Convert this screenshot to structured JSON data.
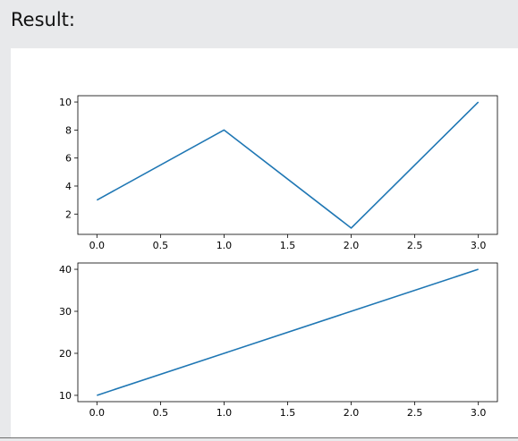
{
  "header": {
    "label": "Result:"
  },
  "chart_data": [
    {
      "type": "line",
      "x": [
        0.0,
        1.0,
        2.0,
        3.0
      ],
      "series": [
        {
          "values": [
            3,
            8,
            1,
            10
          ],
          "color": "#1f77b4"
        }
      ],
      "xlim": [
        -0.15,
        3.15
      ],
      "ylim": [
        0.55,
        10.45
      ],
      "xticks": [
        0.0,
        0.5,
        1.0,
        1.5,
        2.0,
        2.5,
        3.0
      ],
      "xtick_labels": [
        "0.0",
        "0.5",
        "1.0",
        "1.5",
        "2.0",
        "2.5",
        "3.0"
      ],
      "yticks": [
        2,
        4,
        6,
        8,
        10
      ],
      "ytick_labels": [
        "2",
        "4",
        "6",
        "8",
        "10"
      ],
      "grid": false
    },
    {
      "type": "line",
      "x": [
        0.0,
        1.0,
        2.0,
        3.0
      ],
      "series": [
        {
          "values": [
            10,
            20,
            30,
            40
          ],
          "color": "#1f77b4"
        }
      ],
      "xlim": [
        -0.15,
        3.15
      ],
      "ylim": [
        8.5,
        41.5
      ],
      "xticks": [
        0.0,
        0.5,
        1.0,
        1.5,
        2.0,
        2.5,
        3.0
      ],
      "xtick_labels": [
        "0.0",
        "0.5",
        "1.0",
        "1.5",
        "2.0",
        "2.5",
        "3.0"
      ],
      "yticks": [
        10,
        20,
        30,
        40
      ],
      "ytick_labels": [
        "10",
        "20",
        "30",
        "40"
      ],
      "grid": false
    }
  ]
}
